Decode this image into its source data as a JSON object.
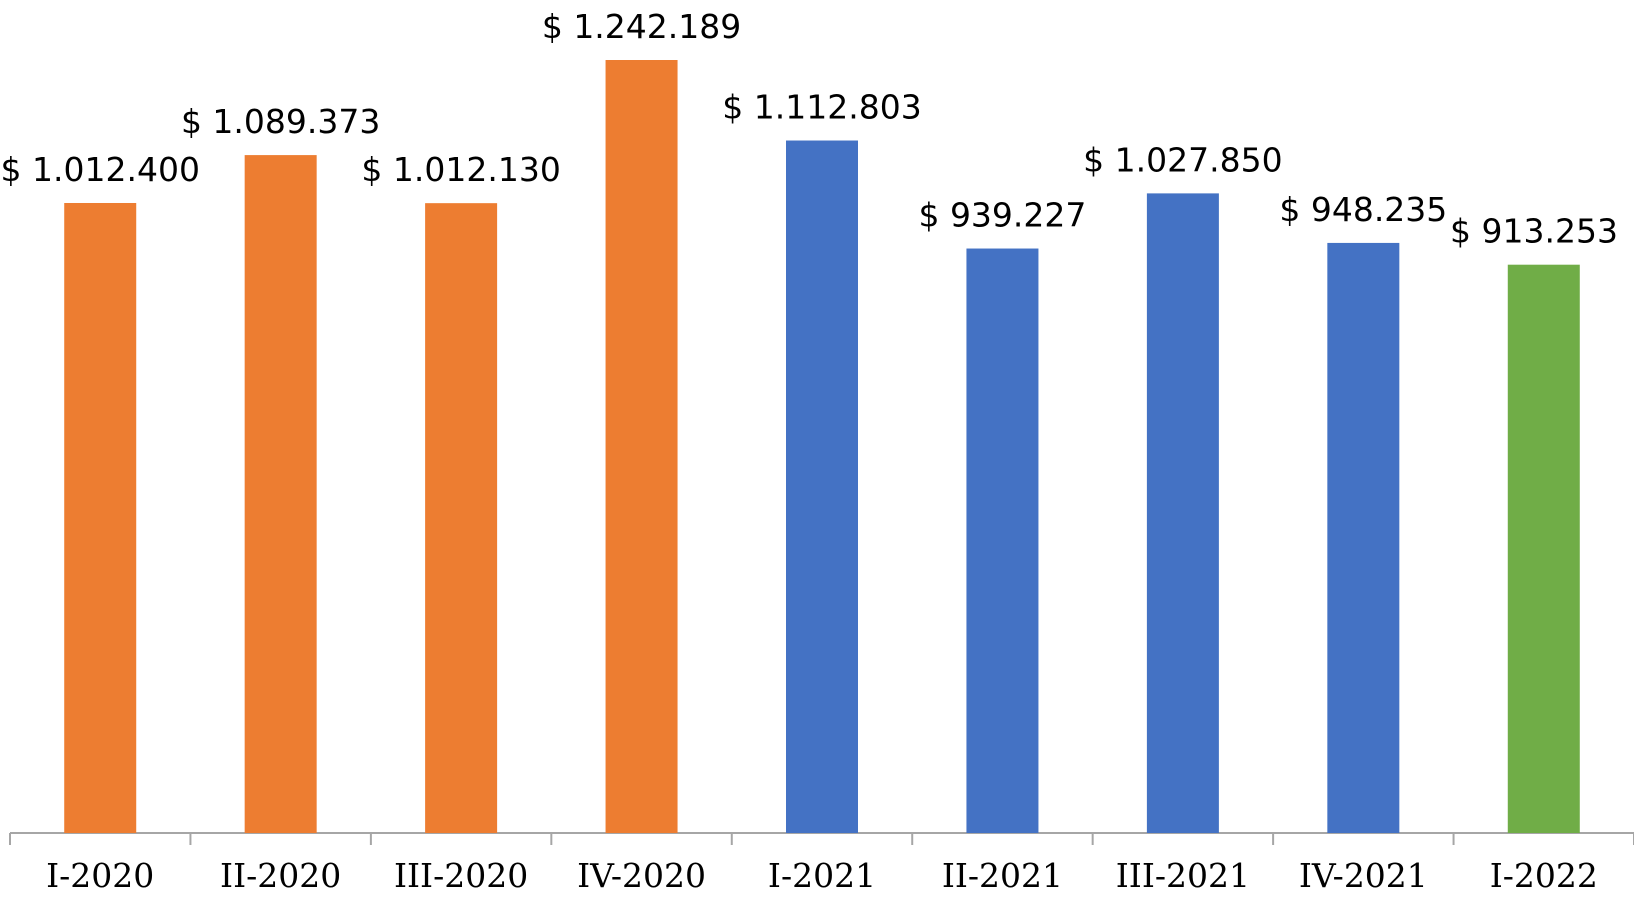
{
  "chart_data": {
    "type": "bar",
    "categories": [
      "I-2020",
      "II-2020",
      "III-2020",
      "IV-2020",
      "I-2021",
      "II-2021",
      "III-2021",
      "IV-2021",
      "I-2022"
    ],
    "values": [
      1012400,
      1089373,
      1012130,
      1242189,
      1112803,
      939227,
      1027850,
      948235,
      913253
    ],
    "value_labels": [
      "$ 1.012.400",
      "$ 1.089.373",
      "$ 1.012.130",
      "$ 1.242.189",
      "$ 1.112.803",
      "$ 939.227",
      "$ 1.027.850",
      "$ 948.235",
      "$ 913.253"
    ],
    "colors": [
      "#ed7d31",
      "#ed7d31",
      "#ed7d31",
      "#ed7d31",
      "#4472c4",
      "#4472c4",
      "#4472c4",
      "#4472c4",
      "#70ad47"
    ]
  }
}
